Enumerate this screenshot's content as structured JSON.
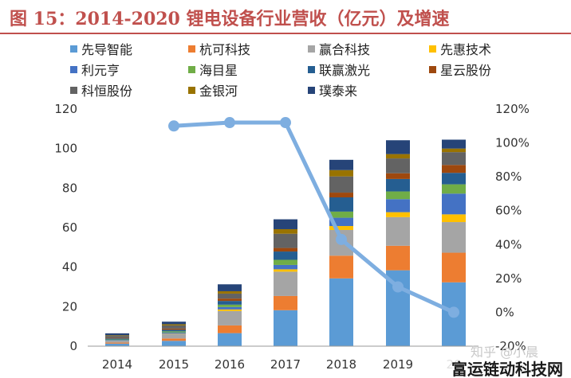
{
  "chart_data": {
    "type": "bar",
    "title": "图 15：2014-2020 锂电设备行业营收（亿元）及增速",
    "categories": [
      "2014",
      "2015",
      "2016",
      "2017",
      "2018",
      "2019",
      "2020"
    ],
    "x_tick_labels": [
      "2014",
      "2015",
      "2016",
      "2017",
      "2018",
      "2019",
      "20"
    ],
    "y_left": {
      "min": 0,
      "max": 120,
      "ticks": [
        0,
        20,
        40,
        60,
        80,
        100,
        120
      ]
    },
    "y_right": {
      "min": -20,
      "max": 120,
      "ticks": [
        "-20%",
        "0%",
        "20%",
        "40%",
        "60%",
        "80%",
        "100%",
        "120%"
      ],
      "tick_values": [
        -20,
        0,
        20,
        40,
        60,
        80,
        100,
        120
      ]
    },
    "legend_position": "top",
    "grid": false,
    "series": [
      {
        "name": "先导智能",
        "color": "#5b9bd5",
        "values": [
          1.3,
          2.7,
          6.6,
          18.2,
          34.3,
          38.4,
          32.3
        ]
      },
      {
        "name": "杭可科技",
        "color": "#ed7d31",
        "values": [
          0.5,
          1.2,
          3.9,
          7.2,
          11.5,
          12.4,
          15.0
        ]
      },
      {
        "name": "赢合科技",
        "color": "#a5a5a5",
        "values": [
          1.0,
          2.2,
          7.3,
          12.3,
          13.0,
          14.5,
          15.5
        ]
      },
      {
        "name": "先惠技术",
        "color": "#ffc000",
        "values": [
          0.0,
          0.2,
          0.8,
          1.2,
          2.0,
          2.5,
          3.9
        ]
      },
      {
        "name": "利元亨",
        "color": "#4472c4",
        "values": [
          0.3,
          0.6,
          1.2,
          2.2,
          4.2,
          6.6,
          10.5
        ]
      },
      {
        "name": "海目星",
        "color": "#70ad47",
        "values": [
          0.3,
          0.6,
          1.2,
          2.6,
          3.1,
          3.9,
          4.7
        ]
      },
      {
        "name": "联赢激光",
        "color": "#255e91",
        "values": [
          0.5,
          0.8,
          1.9,
          4.2,
          7.2,
          6.3,
          5.8
        ]
      },
      {
        "name": "星云股份",
        "color": "#9e480e",
        "values": [
          0.3,
          0.6,
          1.2,
          1.8,
          2.4,
          2.9,
          4.0
        ]
      },
      {
        "name": "科恒股份",
        "color": "#636363",
        "values": [
          1.0,
          1.6,
          2.5,
          7.2,
          8.2,
          7.5,
          6.5
        ]
      },
      {
        "name": "金银河",
        "color": "#997300",
        "values": [
          0.3,
          0.6,
          1.2,
          2.3,
          3.2,
          2.2,
          1.8
        ]
      },
      {
        "name": "璞泰来",
        "color": "#264478",
        "values": [
          1.0,
          1.3,
          3.5,
          5.0,
          5.2,
          7.0,
          4.5
        ]
      }
    ],
    "growth_line": {
      "color": "#7eaee0",
      "x": [
        "2015",
        "2016",
        "2017",
        "2018",
        "2019",
        "2020"
      ],
      "values": [
        110,
        112,
        112,
        43,
        15,
        0
      ]
    }
  },
  "watermark": {
    "text_faint": "知乎 @小晨",
    "text_bold": "富运链动科技网"
  }
}
